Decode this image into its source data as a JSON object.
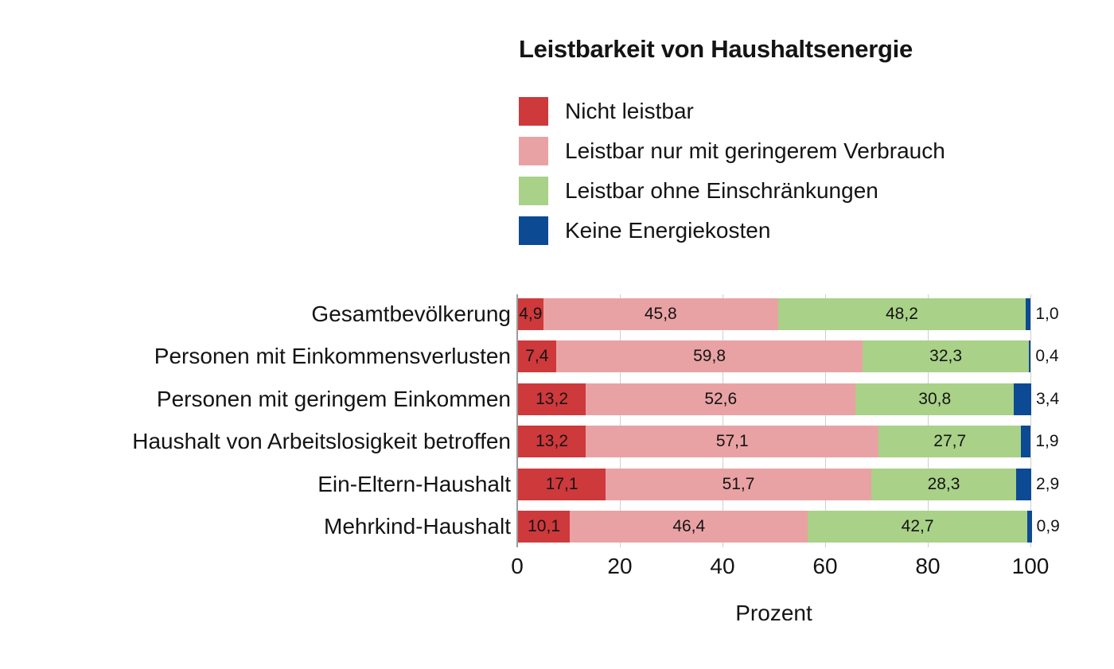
{
  "title": "Leistbarkeit von Haushaltsenergie",
  "colors": {
    "nicht_leistbar": "#ce393c",
    "geringerer_verbrauch": "#e9a2a4",
    "ohne_einschraenkungen": "#a9d187",
    "keine_energiekosten": "#0d4a94",
    "gridline": "#cfcfcf",
    "axis_spine": "#9c9c9c",
    "text": "#141414",
    "background": "#ffffff"
  },
  "legend": [
    {
      "label": "Nicht leistbar",
      "color": "#ce393c"
    },
    {
      "label": "Leistbar nur mit geringerem Verbrauch",
      "color": "#e9a2a4"
    },
    {
      "label": "Leistbar ohne Einschränkungen",
      "color": "#a9d187"
    },
    {
      "label": "Keine Energiekosten",
      "color": "#0d4a94"
    }
  ],
  "chart_data": {
    "type": "bar",
    "orientation": "horizontal",
    "stacked": true,
    "title": "Leistbarkeit von Haushaltsenergie",
    "categories": [
      "Gesamtbevölkerung",
      "Personen mit Einkommensverlusten",
      "Personen mit geringem Einkommen",
      "Haushalt von Arbeitslosigkeit betroffen",
      "Ein-Eltern-Haushalt",
      "Mehrkind-Haushalt"
    ],
    "series": [
      {
        "name": "Nicht leistbar",
        "key": "nicht-leistbar",
        "color": "#ce393c",
        "values": [
          4.9,
          7.4,
          13.2,
          13.2,
          17.1,
          10.1
        ]
      },
      {
        "name": "Leistbar nur mit geringerem Verbrauch",
        "key": "geringerer-verbrauch",
        "color": "#e9a2a4",
        "values": [
          45.8,
          59.8,
          52.6,
          57.1,
          51.7,
          46.4
        ]
      },
      {
        "name": "Leistbar ohne Einschränkungen",
        "key": "ohne-einschraenkungen",
        "color": "#a9d187",
        "values": [
          48.2,
          32.3,
          30.8,
          27.7,
          28.3,
          42.7
        ]
      },
      {
        "name": "Keine Energiekosten",
        "key": "keine-energiekosten",
        "color": "#0d4a94",
        "values": [
          1.0,
          0.4,
          3.4,
          1.9,
          2.9,
          0.9
        ],
        "labels_outside": true
      }
    ],
    "xlabel": "Prozent",
    "xlim": [
      0,
      100
    ],
    "xticks": [
      0,
      20,
      40,
      60,
      80,
      100
    ],
    "xtick_labels": [
      "0",
      "20",
      "40",
      "60",
      "80",
      "100"
    ],
    "decimal_separator": ",",
    "grid": true,
    "legend_position": "top-left-of-plot"
  }
}
